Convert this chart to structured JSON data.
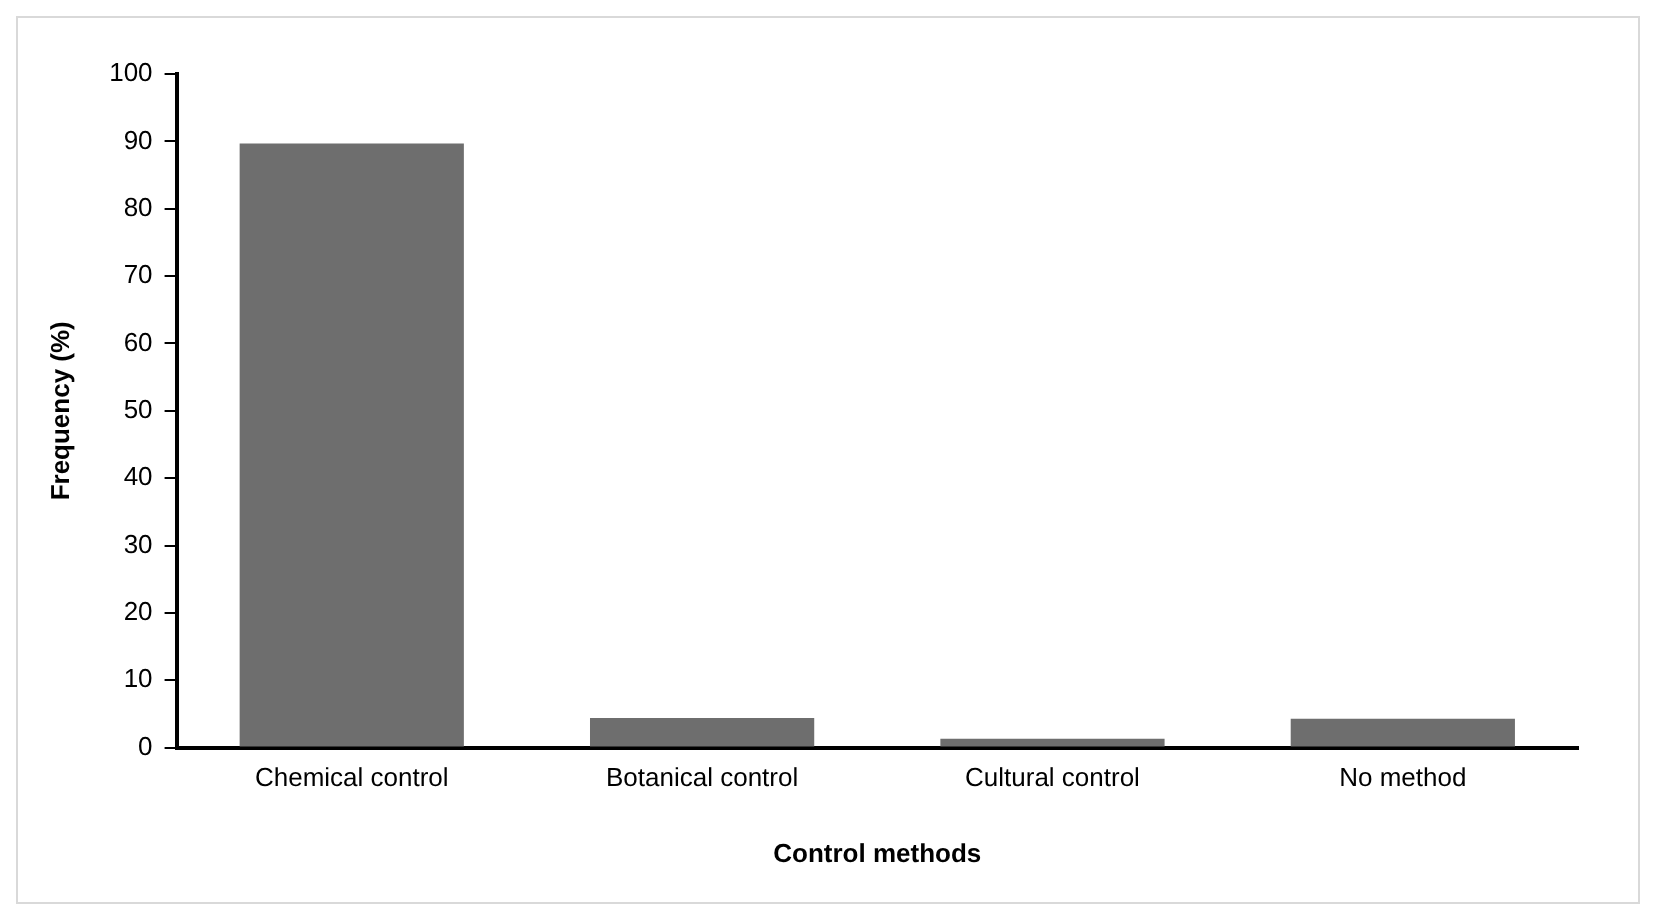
{
  "chart_data": {
    "type": "bar",
    "xlabel": "Control methods",
    "ylabel": "Frequency (%)",
    "categories": [
      "Chemical control",
      "Botanical control",
      "Cultural control",
      "No method"
    ],
    "values": [
      89.7,
      4.4,
      1.3,
      4.3
    ],
    "color": "#6e6e6e",
    "ylim": [
      0,
      100
    ],
    "yticks": [
      0,
      10,
      20,
      30,
      40,
      50,
      60,
      70,
      80,
      90,
      100
    ],
    "grid": false,
    "legend": false
  }
}
